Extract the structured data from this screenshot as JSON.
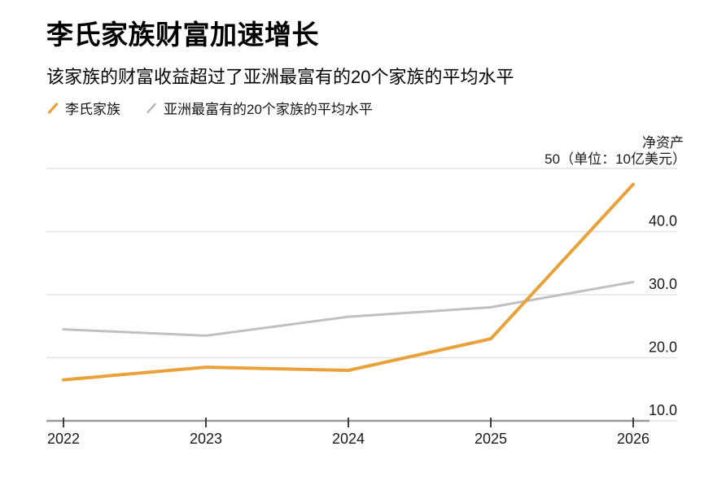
{
  "header": {
    "title": "李氏家族财富加速增长",
    "subtitle": "该家族的财富收益超过了亚洲最富有的20个家族的平均水平"
  },
  "legend": {
    "items": [
      {
        "label": "李氏家族",
        "color": "#E9A13A"
      },
      {
        "label": "亚洲最富有的20个家族的平均水平",
        "color": "#B5B5B5"
      }
    ]
  },
  "axis_header": {
    "line1": "净资产",
    "line2": "50（单位：10亿美元）"
  },
  "colors": {
    "accent_orange": "#E9A13A",
    "line_gray": "#C0C0C0",
    "gridline": "#E3E3E3",
    "axis": "#9A9A9A",
    "tick_mark": "#2B2B2B",
    "text": "#1A1A1A"
  },
  "chart_data": {
    "type": "line",
    "title": "李氏家族财富加速增长",
    "subtitle": "该家族的财富收益超过了亚洲最富有的20个家族的平均水平",
    "xlabel": "",
    "ylabel": "净资产",
    "unit_note": "（单位：10亿美元）",
    "x": [
      2022,
      2023,
      2024,
      2025,
      2026
    ],
    "x_labels": [
      "2022",
      "2023",
      "2024",
      "2025",
      "2026"
    ],
    "series": [
      {
        "name": "李氏家族",
        "color": "#E9A13A",
        "values": [
          16.5,
          18.5,
          18,
          23,
          47.5
        ]
      },
      {
        "name": "亚洲最富有的20个家族的平均水平",
        "color": "#C0C0C0",
        "values": [
          24.5,
          23.5,
          26.5,
          28,
          32
        ]
      }
    ],
    "ylim": [
      10,
      50
    ],
    "yticks": [
      {
        "value": 50,
        "label": ""
      },
      {
        "value": 40,
        "label": "40.0"
      },
      {
        "value": 30,
        "label": "30.0"
      },
      {
        "value": 20,
        "label": "20.0"
      },
      {
        "value": 10,
        "label": "10.0"
      }
    ],
    "grid": "horizontal",
    "legend_position": "top-left"
  }
}
